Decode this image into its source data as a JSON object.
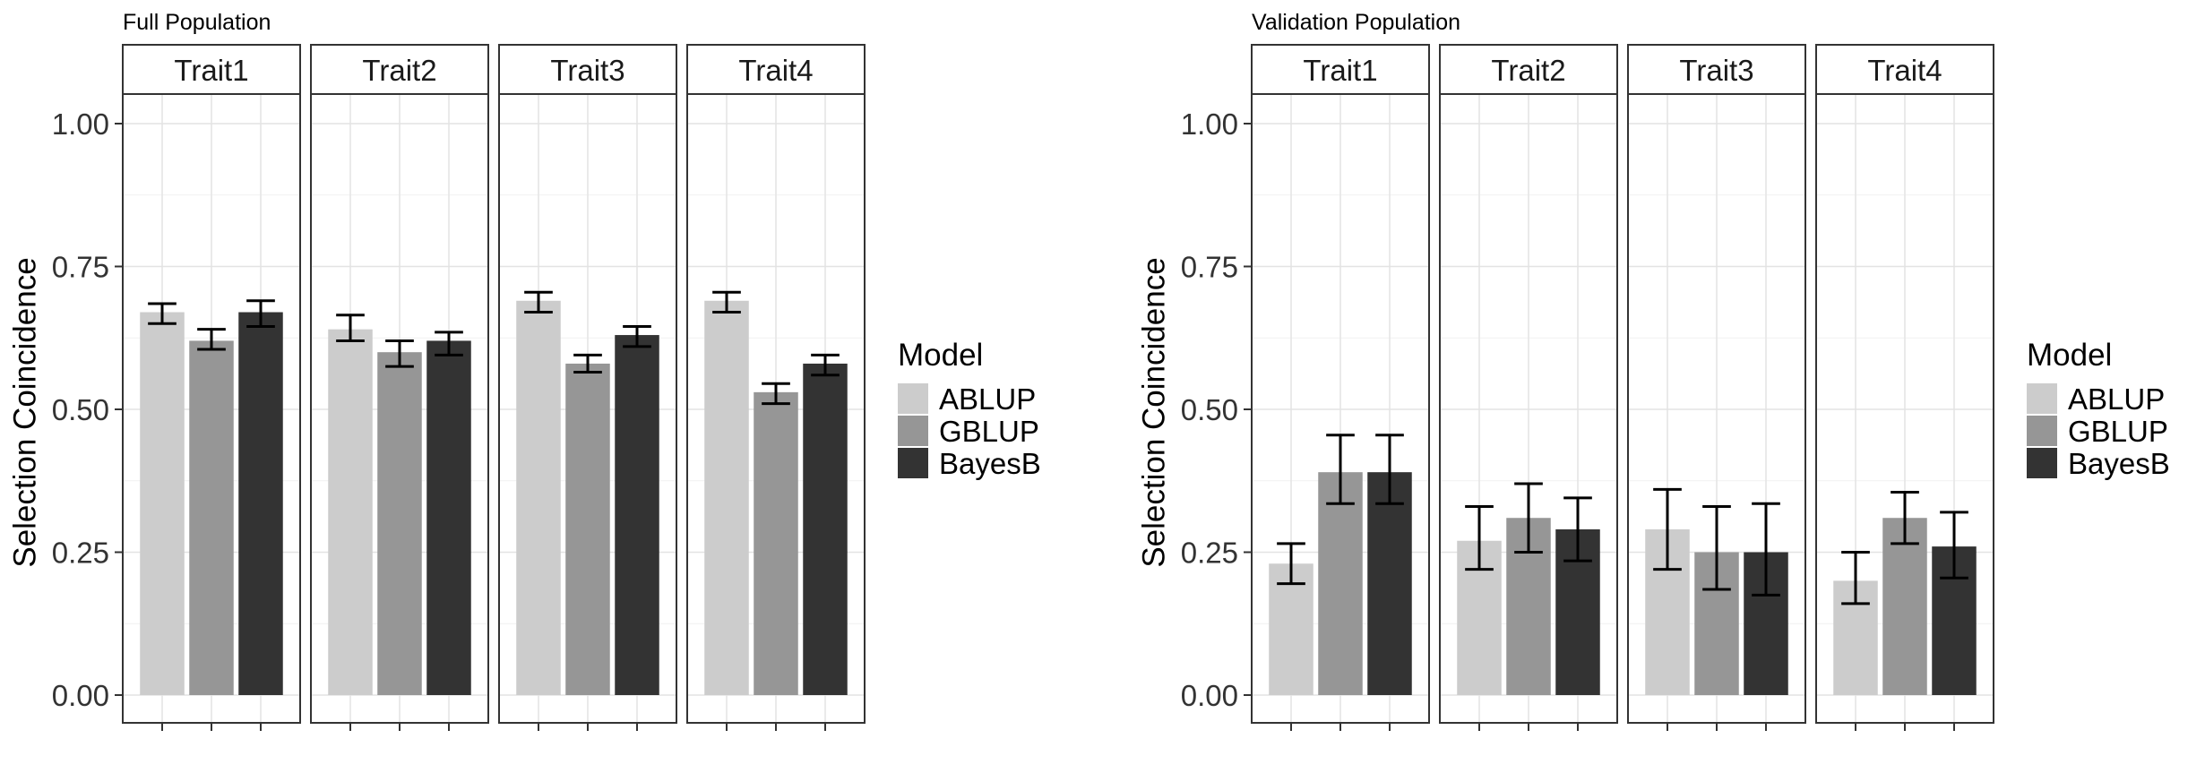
{
  "chart_data": [
    {
      "type": "bar",
      "title": "Full Population",
      "ylabel": "Selection Coincidence",
      "xlabel": "",
      "ylim": [
        0,
        1.05
      ],
      "yticks": [
        "0.00",
        "0.25",
        "0.50",
        "0.75",
        "1.00"
      ],
      "grid": true,
      "facets": [
        "Trait1",
        "Trait2",
        "Trait3",
        "Trait4"
      ],
      "series": [
        {
          "name": "ABLUP",
          "color": "#cccccc",
          "values": [
            0.67,
            0.64,
            0.69,
            0.69
          ],
          "err_low": [
            0.65,
            0.62,
            0.67,
            0.67
          ],
          "err_high": [
            0.685,
            0.665,
            0.705,
            0.705
          ]
        },
        {
          "name": "GBLUP",
          "color": "#969696",
          "values": [
            0.62,
            0.6,
            0.58,
            0.53
          ],
          "err_low": [
            0.605,
            0.575,
            0.565,
            0.51
          ],
          "err_high": [
            0.64,
            0.62,
            0.595,
            0.545
          ]
        },
        {
          "name": "BayesB",
          "color": "#333333",
          "values": [
            0.67,
            0.62,
            0.63,
            0.58
          ],
          "err_low": [
            0.645,
            0.595,
            0.61,
            0.56
          ],
          "err_high": [
            0.69,
            0.635,
            0.645,
            0.595
          ]
        }
      ],
      "legend": {
        "title": "Model",
        "position": "right"
      }
    },
    {
      "type": "bar",
      "title": "Validation Population",
      "ylabel": "Selection Coincidence",
      "xlabel": "",
      "ylim": [
        0,
        1.05
      ],
      "yticks": [
        "0.00",
        "0.25",
        "0.50",
        "0.75",
        "1.00"
      ],
      "grid": true,
      "facets": [
        "Trait1",
        "Trait2",
        "Trait3",
        "Trait4"
      ],
      "series": [
        {
          "name": "ABLUP",
          "color": "#cccccc",
          "values": [
            0.23,
            0.27,
            0.29,
            0.2
          ],
          "err_low": [
            0.195,
            0.22,
            0.22,
            0.16
          ],
          "err_high": [
            0.265,
            0.33,
            0.36,
            0.25
          ]
        },
        {
          "name": "GBLUP",
          "color": "#969696",
          "values": [
            0.39,
            0.31,
            0.25,
            0.31
          ],
          "err_low": [
            0.335,
            0.25,
            0.185,
            0.265
          ],
          "err_high": [
            0.455,
            0.37,
            0.33,
            0.355
          ]
        },
        {
          "name": "BayesB",
          "color": "#333333",
          "values": [
            0.39,
            0.29,
            0.25,
            0.26
          ],
          "err_low": [
            0.335,
            0.235,
            0.175,
            0.205
          ],
          "err_high": [
            0.455,
            0.345,
            0.335,
            0.32
          ]
        }
      ],
      "legend": {
        "title": "Model",
        "position": "right"
      }
    }
  ]
}
